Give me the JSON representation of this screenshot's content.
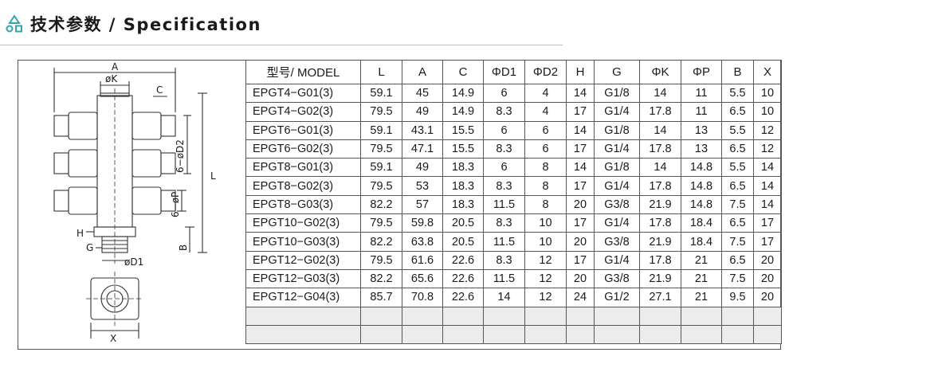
{
  "header": {
    "icon": "triangle-circle-square-icon",
    "title": "技术参数 / Specification"
  },
  "diagram": {
    "labels": {
      "a": "A",
      "k": "øK",
      "c": "C",
      "d2": "6−øD2",
      "l": "L",
      "p": "6−øP",
      "h": "H",
      "b": "B",
      "g": "G",
      "d1": "øD1",
      "x": "X"
    }
  },
  "table": {
    "columns": [
      "型号/ MODEL",
      "L",
      "A",
      "C",
      "ΦD1",
      "ΦD2",
      "H",
      "G",
      "ΦK",
      "ΦP",
      "B",
      "X"
    ],
    "rows": [
      [
        "EPGT4−G01(3)",
        "59.1",
        "45",
        "14.9",
        "6",
        "4",
        "14",
        "G1/8",
        "14",
        "11",
        "5.5",
        "10"
      ],
      [
        "EPGT4−G02(3)",
        "79.5",
        "49",
        "14.9",
        "8.3",
        "4",
        "17",
        "G1/4",
        "17.8",
        "11",
        "6.5",
        "10"
      ],
      [
        "EPGT6−G01(3)",
        "59.1",
        "43.1",
        "15.5",
        "6",
        "6",
        "14",
        "G1/8",
        "14",
        "13",
        "5.5",
        "12"
      ],
      [
        "EPGT6−G02(3)",
        "79.5",
        "47.1",
        "15.5",
        "8.3",
        "6",
        "17",
        "G1/4",
        "17.8",
        "13",
        "6.5",
        "12"
      ],
      [
        "EPGT8−G01(3)",
        "59.1",
        "49",
        "18.3",
        "6",
        "8",
        "14",
        "G1/8",
        "14",
        "14.8",
        "5.5",
        "14"
      ],
      [
        "EPGT8−G02(3)",
        "79.5",
        "53",
        "18.3",
        "8.3",
        "8",
        "17",
        "G1/4",
        "17.8",
        "14.8",
        "6.5",
        "14"
      ],
      [
        "EPGT8−G03(3)",
        "82.2",
        "57",
        "18.3",
        "11.5",
        "8",
        "20",
        "G3/8",
        "21.9",
        "14.8",
        "7.5",
        "14"
      ],
      [
        "EPGT10−G02(3)",
        "79.5",
        "59.8",
        "20.5",
        "8.3",
        "10",
        "17",
        "G1/4",
        "17.8",
        "18.4",
        "6.5",
        "17"
      ],
      [
        "EPGT10−G03(3)",
        "82.2",
        "63.8",
        "20.5",
        "11.5",
        "10",
        "20",
        "G3/8",
        "21.9",
        "18.4",
        "7.5",
        "17"
      ],
      [
        "EPGT12−G02(3)",
        "79.5",
        "61.6",
        "22.6",
        "8.3",
        "12",
        "17",
        "G1/4",
        "17.8",
        "21",
        "6.5",
        "20"
      ],
      [
        "EPGT12−G03(3)",
        "82.2",
        "65.6",
        "22.6",
        "11.5",
        "12",
        "20",
        "G3/8",
        "21.9",
        "21",
        "7.5",
        "20"
      ],
      [
        "EPGT12−G04(3)",
        "85.7",
        "70.8",
        "22.6",
        "14",
        "12",
        "24",
        "G1/2",
        "27.1",
        "21",
        "9.5",
        "20"
      ],
      [
        "",
        "",
        "",
        "",
        "",
        "",
        "",
        "",
        "",
        "",
        "",
        ""
      ],
      [
        "",
        "",
        "",
        "",
        "",
        "",
        "",
        "",
        "",
        "",
        "",
        ""
      ]
    ]
  }
}
